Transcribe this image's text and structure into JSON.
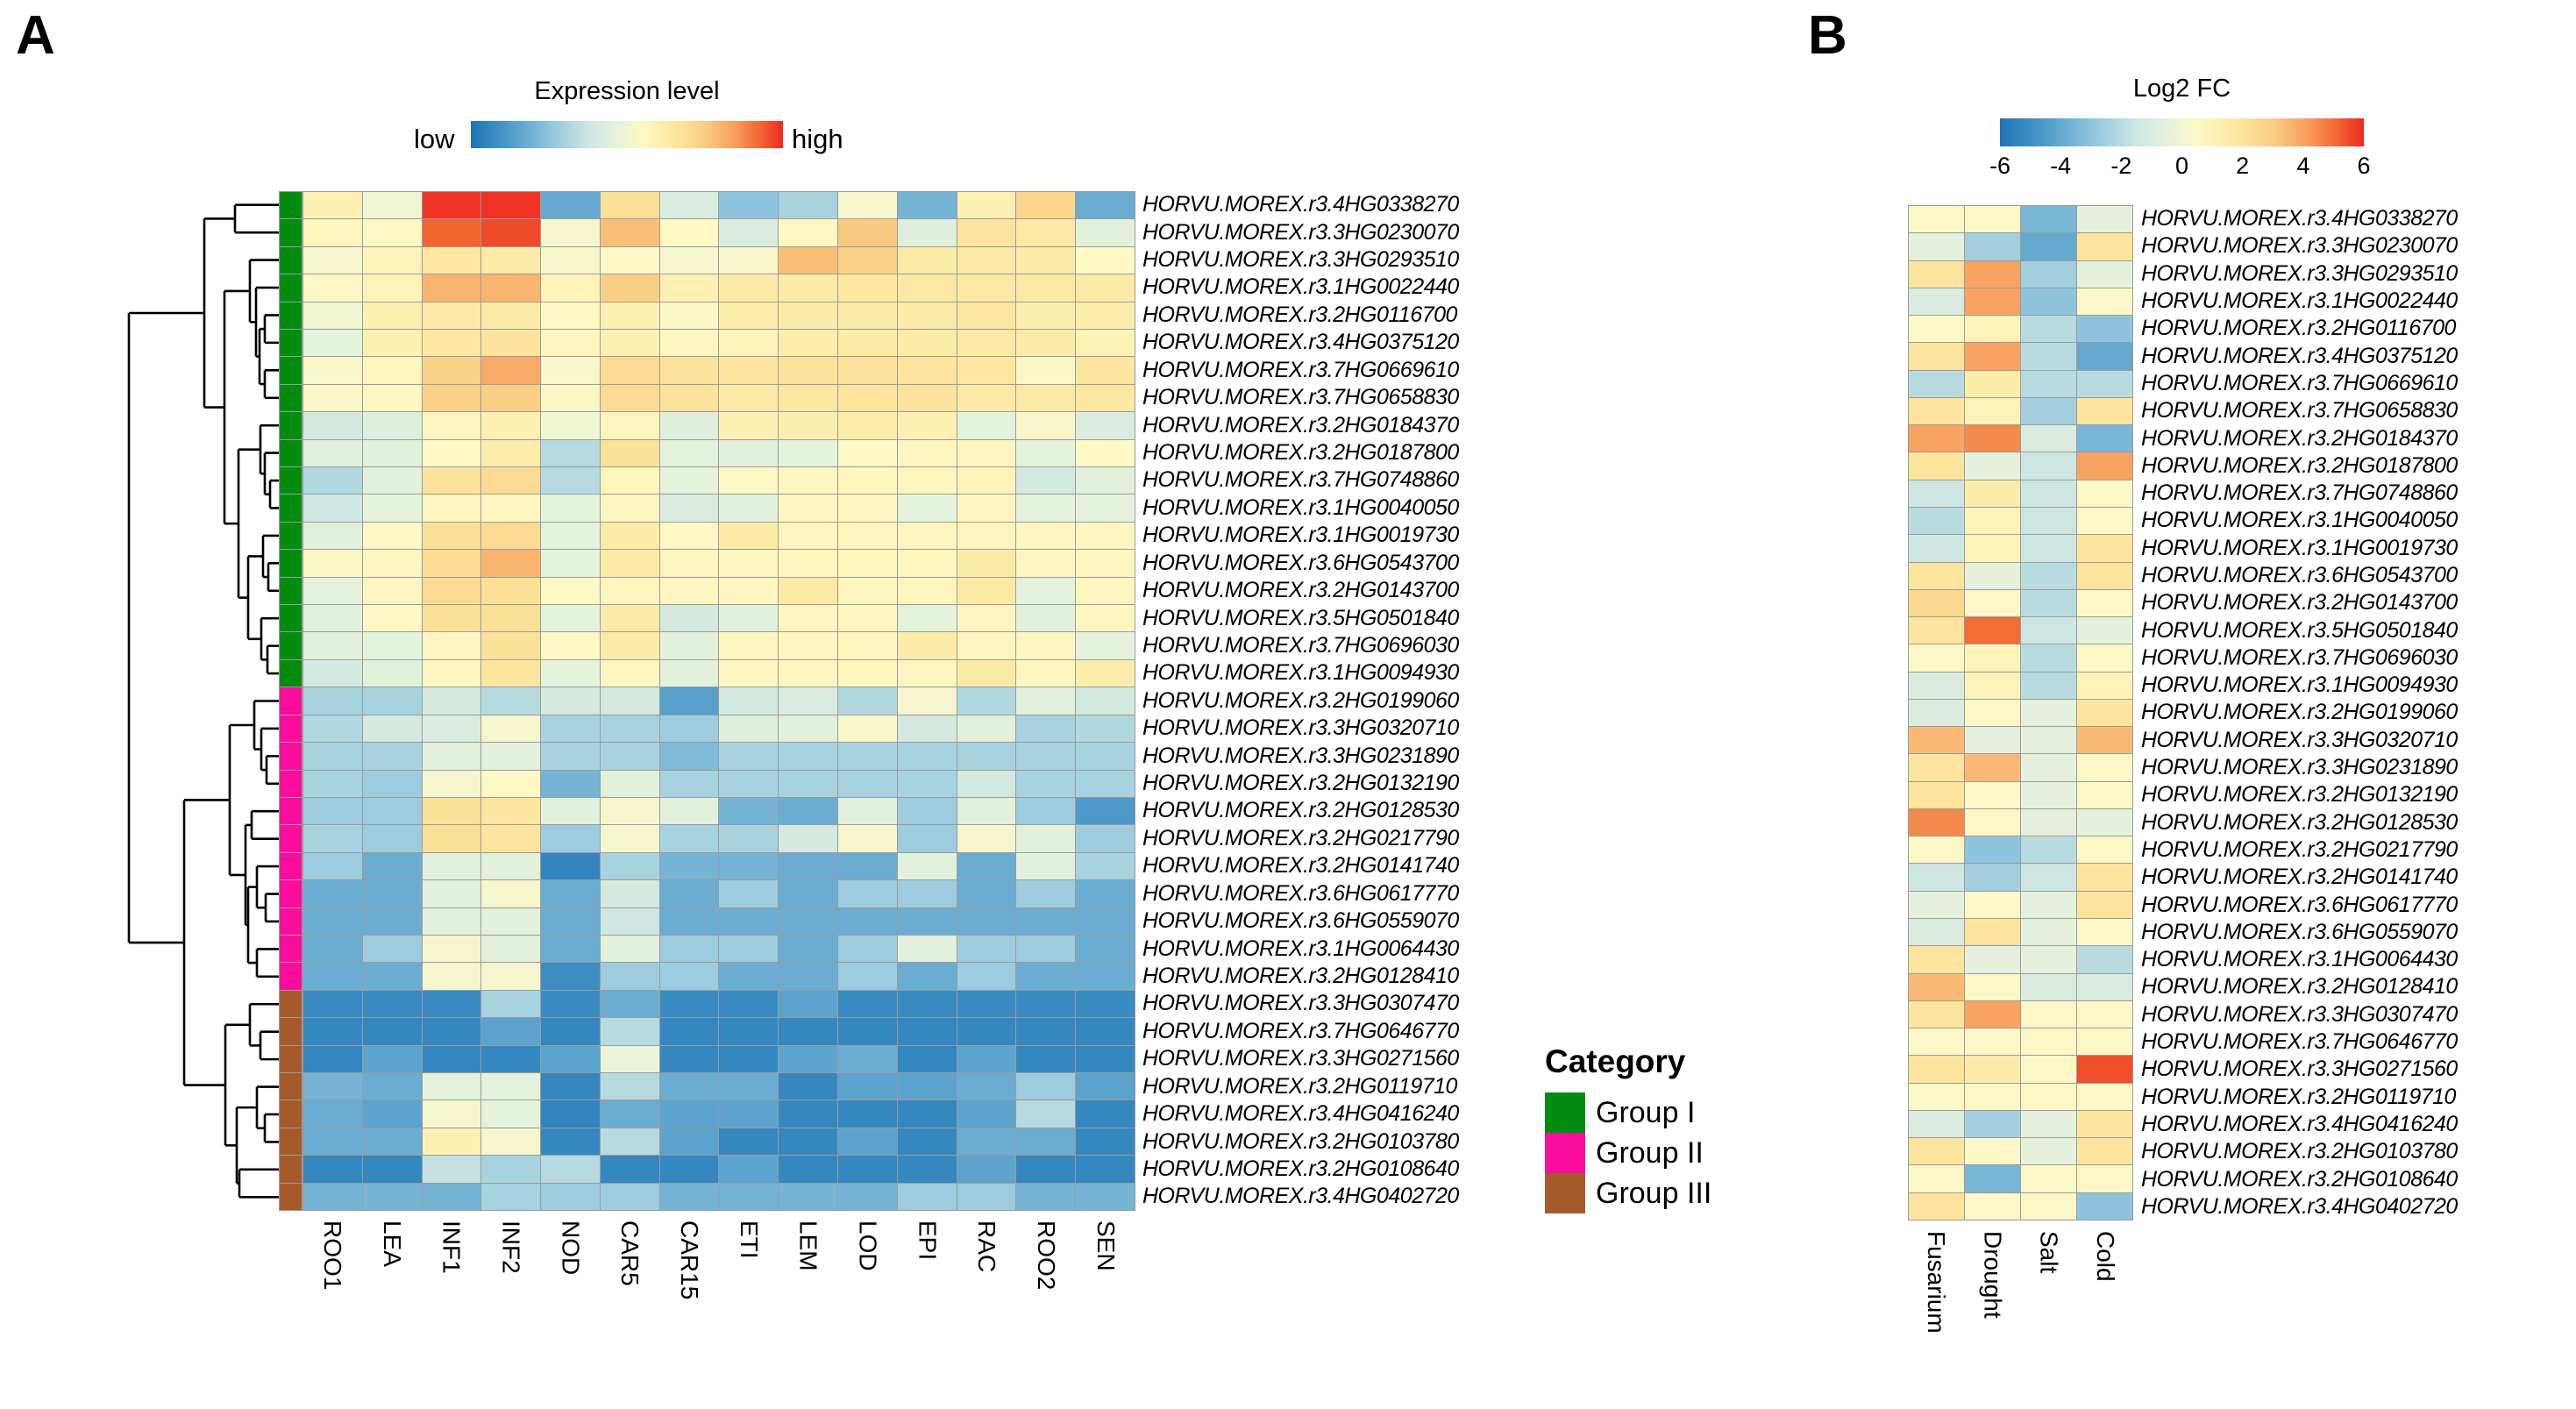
{
  "panels": {
    "A": {
      "label": "A"
    },
    "B": {
      "label": "B"
    }
  },
  "colors": {
    "cell_border": "#9b9b9b",
    "dendrogram_line": "#000000",
    "heat_stops": [
      [
        0.0,
        "#1d74b4"
      ],
      [
        0.125,
        "#4f9bca"
      ],
      [
        0.25,
        "#8ec4dd"
      ],
      [
        0.375,
        "#cde6e2"
      ],
      [
        0.47,
        "#e8f3db"
      ],
      [
        0.55,
        "#fdf8c4"
      ],
      [
        0.65,
        "#fce8a0"
      ],
      [
        0.75,
        "#face85"
      ],
      [
        0.85,
        "#f79b5b"
      ],
      [
        0.93,
        "#f2642f"
      ],
      [
        1.0,
        "#ed2a21"
      ]
    ]
  },
  "chart_data": [
    {
      "type": "heatmap",
      "panel": "A",
      "title": "Expression level",
      "value_scale": {
        "min": "low",
        "max": "high"
      },
      "columns": [
        "ROO1",
        "LEA",
        "INF1",
        "INF2",
        "NOD",
        "CAR5",
        "CAR15",
        "ETI",
        "LEM",
        "LOD",
        "EPI",
        "RAC",
        "ROO2",
        "SEN"
      ],
      "rows": [
        "HORVU.MOREX.r3.4HG0338270",
        "HORVU.MOREX.r3.3HG0230070",
        "HORVU.MOREX.r3.3HG0293510",
        "HORVU.MOREX.r3.1HG0022440",
        "HORVU.MOREX.r3.2HG0116700",
        "HORVU.MOREX.r3.4HG0375120",
        "HORVU.MOREX.r3.7HG0669610",
        "HORVU.MOREX.r3.7HG0658830",
        "HORVU.MOREX.r3.2HG0184370",
        "HORVU.MOREX.r3.2HG0187800",
        "HORVU.MOREX.r3.7HG0748860",
        "HORVU.MOREX.r3.1HG0040050",
        "HORVU.MOREX.r3.1HG0019730",
        "HORVU.MOREX.r3.6HG0543700",
        "HORVU.MOREX.r3.2HG0143700",
        "HORVU.MOREX.r3.5HG0501840",
        "HORVU.MOREX.r3.7HG0696030",
        "HORVU.MOREX.r3.1HG0094930",
        "HORVU.MOREX.r3.2HG0199060",
        "HORVU.MOREX.r3.3HG0320710",
        "HORVU.MOREX.r3.3HG0231890",
        "HORVU.MOREX.r3.2HG0132190",
        "HORVU.MOREX.r3.2HG0128530",
        "HORVU.MOREX.r3.2HG0217790",
        "HORVU.MOREX.r3.2HG0141740",
        "HORVU.MOREX.r3.6HG0617770",
        "HORVU.MOREX.r3.6HG0559070",
        "HORVU.MOREX.r3.1HG0064430",
        "HORVU.MOREX.r3.2HG0128410",
        "HORVU.MOREX.r3.3HG0307470",
        "HORVU.MOREX.r3.7HG0646770",
        "HORVU.MOREX.r3.3HG0271560",
        "HORVU.MOREX.r3.2HG0119710",
        "HORVU.MOREX.r3.4HG0416240",
        "HORVU.MOREX.r3.2HG0103780",
        "HORVU.MOREX.r3.2HG0108640",
        "HORVU.MOREX.r3.4HG0402720"
      ],
      "values": [
        [
          0.6,
          0.5,
          0.99,
          0.99,
          0.17,
          0.68,
          0.42,
          0.25,
          0.3,
          0.52,
          0.2,
          0.6,
          0.72,
          0.18
        ],
        [
          0.57,
          0.55,
          0.93,
          0.96,
          0.52,
          0.78,
          0.55,
          0.42,
          0.55,
          0.76,
          0.44,
          0.66,
          0.64,
          0.45
        ],
        [
          0.52,
          0.58,
          0.65,
          0.63,
          0.53,
          0.55,
          0.52,
          0.53,
          0.78,
          0.74,
          0.63,
          0.64,
          0.63,
          0.55
        ],
        [
          0.55,
          0.58,
          0.8,
          0.8,
          0.58,
          0.75,
          0.6,
          0.63,
          0.63,
          0.65,
          0.64,
          0.64,
          0.64,
          0.63
        ],
        [
          0.5,
          0.6,
          0.64,
          0.63,
          0.55,
          0.6,
          0.54,
          0.62,
          0.63,
          0.63,
          0.63,
          0.65,
          0.61,
          0.62
        ],
        [
          0.46,
          0.6,
          0.65,
          0.67,
          0.57,
          0.6,
          0.56,
          0.58,
          0.62,
          0.63,
          0.63,
          0.64,
          0.63,
          0.59
        ],
        [
          0.53,
          0.57,
          0.73,
          0.82,
          0.53,
          0.7,
          0.67,
          0.66,
          0.67,
          0.67,
          0.66,
          0.65,
          0.54,
          0.66
        ],
        [
          0.54,
          0.56,
          0.74,
          0.75,
          0.54,
          0.7,
          0.67,
          0.64,
          0.65,
          0.66,
          0.67,
          0.64,
          0.64,
          0.65
        ],
        [
          0.4,
          0.43,
          0.57,
          0.6,
          0.5,
          0.57,
          0.44,
          0.6,
          0.61,
          0.62,
          0.6,
          0.46,
          0.53,
          0.42
        ],
        [
          0.45,
          0.45,
          0.55,
          0.62,
          0.33,
          0.68,
          0.46,
          0.45,
          0.46,
          0.55,
          0.56,
          0.57,
          0.46,
          0.55
        ],
        [
          0.32,
          0.45,
          0.67,
          0.7,
          0.33,
          0.57,
          0.46,
          0.55,
          0.56,
          0.57,
          0.57,
          0.58,
          0.4,
          0.45
        ],
        [
          0.38,
          0.46,
          0.56,
          0.56,
          0.46,
          0.56,
          0.42,
          0.45,
          0.56,
          0.56,
          0.46,
          0.56,
          0.46,
          0.46
        ],
        [
          0.45,
          0.55,
          0.68,
          0.7,
          0.46,
          0.63,
          0.55,
          0.64,
          0.57,
          0.57,
          0.57,
          0.57,
          0.56,
          0.56
        ],
        [
          0.54,
          0.56,
          0.7,
          0.8,
          0.46,
          0.64,
          0.56,
          0.56,
          0.57,
          0.57,
          0.57,
          0.63,
          0.56,
          0.56
        ],
        [
          0.46,
          0.56,
          0.7,
          0.68,
          0.55,
          0.57,
          0.56,
          0.56,
          0.64,
          0.57,
          0.57,
          0.64,
          0.46,
          0.56
        ],
        [
          0.45,
          0.55,
          0.68,
          0.68,
          0.46,
          0.63,
          0.4,
          0.45,
          0.56,
          0.56,
          0.46,
          0.56,
          0.45,
          0.56
        ],
        [
          0.45,
          0.46,
          0.56,
          0.68,
          0.55,
          0.63,
          0.45,
          0.56,
          0.57,
          0.57,
          0.63,
          0.57,
          0.56,
          0.46
        ],
        [
          0.4,
          0.45,
          0.56,
          0.66,
          0.46,
          0.56,
          0.45,
          0.56,
          0.56,
          0.57,
          0.56,
          0.63,
          0.56,
          0.62
        ],
        [
          0.3,
          0.3,
          0.4,
          0.33,
          0.4,
          0.4,
          0.14,
          0.4,
          0.42,
          0.32,
          0.52,
          0.32,
          0.45,
          0.4
        ],
        [
          0.32,
          0.4,
          0.42,
          0.52,
          0.3,
          0.3,
          0.28,
          0.44,
          0.45,
          0.53,
          0.4,
          0.45,
          0.3,
          0.32
        ],
        [
          0.3,
          0.3,
          0.45,
          0.45,
          0.3,
          0.3,
          0.22,
          0.3,
          0.3,
          0.3,
          0.3,
          0.3,
          0.3,
          0.3
        ],
        [
          0.3,
          0.28,
          0.52,
          0.55,
          0.2,
          0.45,
          0.3,
          0.3,
          0.3,
          0.3,
          0.3,
          0.4,
          0.3,
          0.3
        ],
        [
          0.28,
          0.28,
          0.68,
          0.66,
          0.45,
          0.52,
          0.45,
          0.2,
          0.18,
          0.45,
          0.28,
          0.45,
          0.28,
          0.12
        ],
        [
          0.3,
          0.28,
          0.68,
          0.66,
          0.28,
          0.52,
          0.3,
          0.3,
          0.4,
          0.52,
          0.28,
          0.52,
          0.45,
          0.28
        ],
        [
          0.28,
          0.18,
          0.45,
          0.45,
          0.05,
          0.3,
          0.2,
          0.2,
          0.18,
          0.18,
          0.45,
          0.18,
          0.45,
          0.3
        ],
        [
          0.18,
          0.18,
          0.45,
          0.52,
          0.18,
          0.4,
          0.18,
          0.28,
          0.18,
          0.28,
          0.28,
          0.18,
          0.28,
          0.18
        ],
        [
          0.18,
          0.18,
          0.45,
          0.45,
          0.18,
          0.38,
          0.18,
          0.18,
          0.18,
          0.18,
          0.18,
          0.18,
          0.18,
          0.18
        ],
        [
          0.18,
          0.28,
          0.52,
          0.45,
          0.18,
          0.45,
          0.28,
          0.28,
          0.18,
          0.28,
          0.45,
          0.28,
          0.28,
          0.18
        ],
        [
          0.18,
          0.18,
          0.52,
          0.52,
          0.08,
          0.28,
          0.28,
          0.18,
          0.18,
          0.28,
          0.18,
          0.28,
          0.18,
          0.18
        ],
        [
          0.07,
          0.07,
          0.07,
          0.3,
          0.07,
          0.18,
          0.07,
          0.07,
          0.15,
          0.07,
          0.07,
          0.07,
          0.07,
          0.07
        ],
        [
          0.06,
          0.06,
          0.06,
          0.15,
          0.06,
          0.33,
          0.06,
          0.06,
          0.06,
          0.06,
          0.06,
          0.06,
          0.06,
          0.06
        ],
        [
          0.06,
          0.15,
          0.06,
          0.06,
          0.15,
          0.48,
          0.06,
          0.06,
          0.15,
          0.18,
          0.06,
          0.15,
          0.06,
          0.06
        ],
        [
          0.2,
          0.18,
          0.46,
          0.46,
          0.06,
          0.33,
          0.18,
          0.18,
          0.06,
          0.15,
          0.15,
          0.18,
          0.28,
          0.15
        ],
        [
          0.18,
          0.15,
          0.52,
          0.46,
          0.05,
          0.18,
          0.15,
          0.15,
          0.06,
          0.06,
          0.06,
          0.15,
          0.33,
          0.06
        ],
        [
          0.18,
          0.18,
          0.6,
          0.52,
          0.06,
          0.33,
          0.15,
          0.06,
          0.06,
          0.15,
          0.06,
          0.18,
          0.18,
          0.06
        ],
        [
          0.06,
          0.06,
          0.36,
          0.3,
          0.33,
          0.06,
          0.06,
          0.15,
          0.06,
          0.06,
          0.06,
          0.15,
          0.06,
          0.06
        ],
        [
          0.2,
          0.2,
          0.2,
          0.3,
          0.28,
          0.28,
          0.2,
          0.2,
          0.2,
          0.2,
          0.28,
          0.28,
          0.2,
          0.2
        ]
      ],
      "row_groups": [
        0,
        0,
        0,
        0,
        0,
        0,
        0,
        0,
        0,
        0,
        0,
        0,
        0,
        0,
        0,
        0,
        0,
        0,
        1,
        1,
        1,
        1,
        1,
        1,
        1,
        1,
        1,
        1,
        1,
        2,
        2,
        2,
        2,
        2,
        2,
        2,
        2
      ],
      "legend": {
        "title": "Category",
        "items": [
          {
            "label": "Group I",
            "color": "#028c10"
          },
          {
            "label": "Group II",
            "color": "#f80d9d"
          },
          {
            "label": "Group III",
            "color": "#a65a2c"
          }
        ]
      },
      "dendrogram": [
        198,
        [
          112,
          [
            77,
            0,
            1
          ],
          [
            89,
            [
              60,
              2,
              [
                53,
                3,
                [
                  49,
                  [
                    43,
                    4,
                    5
                  ],
                  [
                    43,
                    6,
                    7
                  ]
                ]
              ]
            ],
            [
              73,
              [
                48,
                8,
                [
                  43,
                  9,
                  [
                    37,
                    10,
                    11
                  ]
                ]
              ],
              [
                62,
                [
                  45,
                  12,
                  [
                    39,
                    13,
                    14
                  ]
                ],
                [
                  47,
                  15,
                  [
                    40,
                    16,
                    17
                  ]
                ]
              ]
            ]
          ]
        ],
        [
          135,
          [
            83,
            [
              55,
              18,
              [
                47,
                19,
                [
                  41,
                  20,
                  21
                ]
              ]
            ],
            [
              65,
              [
                58,
                22,
                23
              ],
              [
                62,
                [
                  52,
                  24,
                  [
                    42,
                    25,
                    26
                  ]
                ],
                [
                  52,
                  27,
                  28
                ]
              ]
            ]
          ],
          [
            88,
            [
              60,
              29,
              [
                48,
                30,
                31
              ]
            ],
            [
              75,
              [
                52,
                32,
                [
                  43,
                  33,
                  34
                ]
              ],
              [
                72,
                35,
                36
              ]
            ]
          ]
        ]
      ]
    },
    {
      "type": "heatmap",
      "panel": "B",
      "title": "Log2 FC",
      "vlim": [
        -6,
        6
      ],
      "ticks": [
        "-6",
        "-4",
        "-2",
        "0",
        "2",
        "4",
        "6"
      ],
      "columns": [
        "Fusarium",
        "Drought",
        "Salt",
        "Cold"
      ],
      "rows": [
        "HORVU.MOREX.r3.4HG0338270",
        "HORVU.MOREX.r3.3HG0230070",
        "HORVU.MOREX.r3.3HG0293510",
        "HORVU.MOREX.r3.1HG0022440",
        "HORVU.MOREX.r3.2HG0116700",
        "HORVU.MOREX.r3.4HG0375120",
        "HORVU.MOREX.r3.7HG0669610",
        "HORVU.MOREX.r3.7HG0658830",
        "HORVU.MOREX.r3.2HG0184370",
        "HORVU.MOREX.r3.2HG0187800",
        "HORVU.MOREX.r3.7HG0748860",
        "HORVU.MOREX.r3.1HG0040050",
        "HORVU.MOREX.r3.1HG0019730",
        "HORVU.MOREX.r3.6HG0543700",
        "HORVU.MOREX.r3.2HG0143700",
        "HORVU.MOREX.r3.5HG0501840",
        "HORVU.MOREX.r3.7HG0696030",
        "HORVU.MOREX.r3.1HG0094930",
        "HORVU.MOREX.r3.2HG0199060",
        "HORVU.MOREX.r3.3HG0320710",
        "HORVU.MOREX.r3.3HG0231890",
        "HORVU.MOREX.r3.2HG0132190",
        "HORVU.MOREX.r3.2HG0128530",
        "HORVU.MOREX.r3.2HG0217790",
        "HORVU.MOREX.r3.2HG0141740",
        "HORVU.MOREX.r3.6HG0617770",
        "HORVU.MOREX.r3.6HG0559070",
        "HORVU.MOREX.r3.1HG0064430",
        "HORVU.MOREX.r3.2HG0128410",
        "HORVU.MOREX.r3.3HG0307470",
        "HORVU.MOREX.r3.7HG0646770",
        "HORVU.MOREX.r3.3HG0271560",
        "HORVU.MOREX.r3.2HG0119710",
        "HORVU.MOREX.r3.4HG0416240",
        "HORVU.MOREX.r3.2HG0103780",
        "HORVU.MOREX.r3.2HG0108640",
        "HORVU.MOREX.r3.4HG0402720"
      ],
      "values": [
        [
          0.5,
          0.5,
          -3.5,
          -0.5
        ],
        [
          -0.5,
          -2.5,
          -4.0,
          2.0
        ],
        [
          2.0,
          4.0,
          -2.5,
          -0.5
        ],
        [
          -1.0,
          4.0,
          -3.0,
          0.5
        ],
        [
          0.5,
          1.0,
          -2.0,
          -3.0
        ],
        [
          2.0,
          4.0,
          -2.0,
          -4.0
        ],
        [
          -2.0,
          1.5,
          -2.0,
          -2.0
        ],
        [
          2.0,
          1.0,
          -2.5,
          2.0
        ],
        [
          4.0,
          4.5,
          -1.0,
          -3.5
        ],
        [
          2.0,
          -0.5,
          -1.5,
          4.0
        ],
        [
          -1.5,
          1.5,
          -1.5,
          0.5
        ],
        [
          -2.0,
          1.0,
          -1.5,
          0.5
        ],
        [
          -1.5,
          1.0,
          -1.5,
          2.0
        ],
        [
          2.0,
          -0.5,
          -2.0,
          2.0
        ],
        [
          2.5,
          0.5,
          -2.0,
          0.5
        ],
        [
          2.0,
          5.0,
          -1.5,
          -0.5
        ],
        [
          0.5,
          1.0,
          -2.0,
          0.5
        ],
        [
          -1.0,
          1.0,
          -2.0,
          1.0
        ],
        [
          -1.0,
          0.5,
          -0.5,
          2.0
        ],
        [
          3.5,
          -0.5,
          -0.5,
          3.5
        ],
        [
          2.0,
          3.5,
          -0.5,
          0.5
        ],
        [
          2.0,
          0.5,
          -0.5,
          0.5
        ],
        [
          4.5,
          0.5,
          -0.5,
          -0.5
        ],
        [
          0.5,
          -3.0,
          -2.0,
          0.5
        ],
        [
          -1.5,
          -2.5,
          -1.5,
          2.0
        ],
        [
          -0.5,
          0.5,
          -0.5,
          2.0
        ],
        [
          -1.0,
          2.0,
          -0.5,
          0.5
        ],
        [
          2.0,
          -0.5,
          -0.5,
          -2.0
        ],
        [
          3.5,
          0.5,
          -1.0,
          -1.0
        ],
        [
          2.0,
          4.0,
          0.5,
          0.5
        ],
        [
          0.5,
          0.5,
          0.5,
          0.5
        ],
        [
          2.0,
          1.5,
          0.5,
          5.5
        ],
        [
          0.5,
          0.5,
          0.5,
          0.5
        ],
        [
          -1.0,
          -2.5,
          -0.5,
          2.0
        ],
        [
          2.0,
          0.5,
          -0.5,
          2.0
        ],
        [
          0.5,
          -3.5,
          0.5,
          0.5
        ],
        [
          2.0,
          0.5,
          0.5,
          -3.0
        ]
      ]
    }
  ]
}
